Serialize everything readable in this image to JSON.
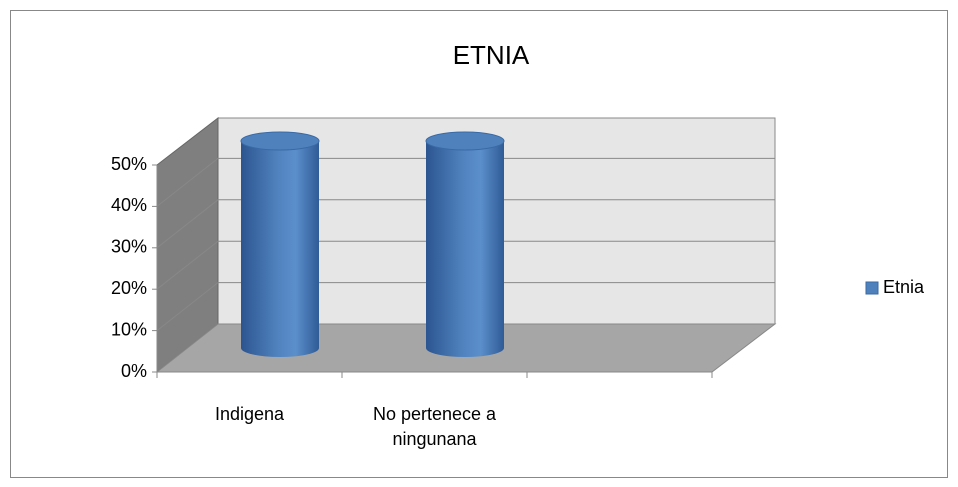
{
  "chart_data": {
    "type": "bar3d",
    "title": "ETNIA",
    "categories": [
      "Indigena",
      "No pertenece a ningunana",
      null
    ],
    "series": [
      {
        "name": "Etnia",
        "color": "#4f81bd",
        "values": [
          50,
          50,
          null
        ]
      }
    ],
    "ylim": [
      0,
      50
    ],
    "yticks": [
      {
        "value": 0,
        "label": "0%"
      },
      {
        "value": 10,
        "label": "10%"
      },
      {
        "value": 20,
        "label": "20%"
      },
      {
        "value": 30,
        "label": "30%"
      },
      {
        "value": 40,
        "label": "40%"
      },
      {
        "value": 50,
        "label": "50%"
      }
    ],
    "grid": true,
    "legend": "right"
  }
}
